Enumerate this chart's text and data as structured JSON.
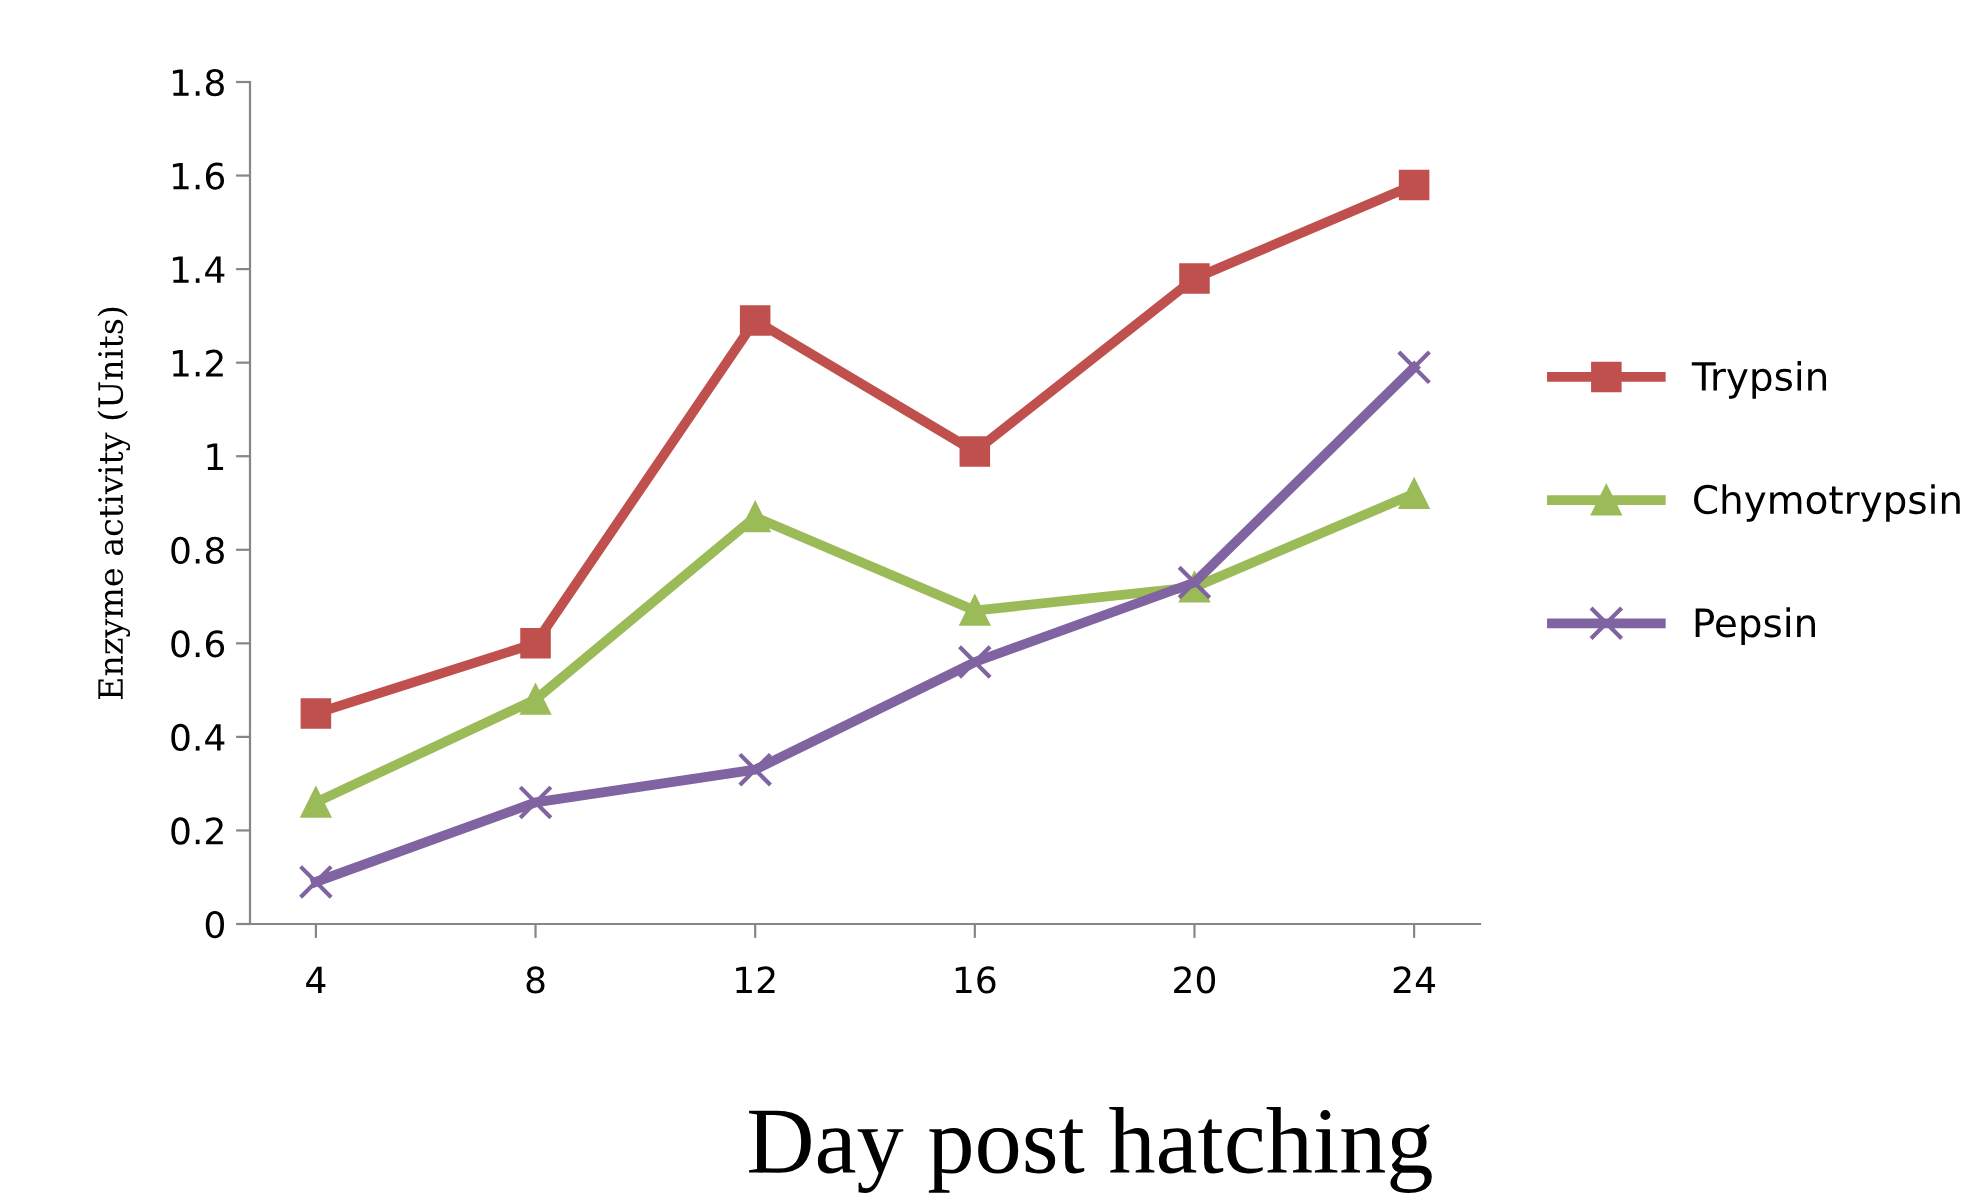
{
  "chart_data": {
    "type": "line",
    "xlabel": "Day post hatching",
    "ylabel": "Enzyme activity (Units)",
    "categories": [
      "4",
      "8",
      "12",
      "16",
      "20",
      "24"
    ],
    "series": [
      {
        "name": "Trypsin",
        "color": "#c0504d",
        "marker": "square",
        "values": [
          0.45,
          0.6,
          1.29,
          1.01,
          1.38,
          1.58
        ]
      },
      {
        "name": "Chymotrypsin",
        "color": "#9bbb59",
        "marker": "triangle",
        "values": [
          0.26,
          0.48,
          0.87,
          0.67,
          0.72,
          0.92
        ]
      },
      {
        "name": "Pepsin",
        "color": "#8064a2",
        "marker": "cross",
        "values": [
          0.09,
          0.26,
          0.33,
          0.56,
          0.73,
          1.19
        ]
      }
    ],
    "ylim": [
      0,
      1.8
    ],
    "yticks": [
      0,
      0.2,
      0.4,
      0.6,
      0.8,
      1,
      1.2,
      1.4,
      1.6,
      1.8
    ],
    "grid": false,
    "legend": "right",
    "line_style": "solid"
  }
}
